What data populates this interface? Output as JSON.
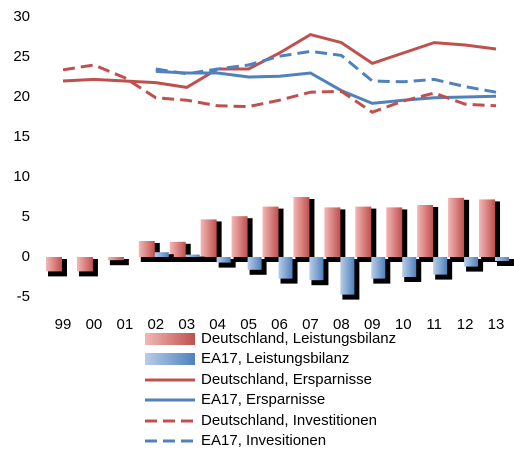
{
  "chart_data": {
    "type": "bar",
    "categories": [
      "99",
      "00",
      "01",
      "02",
      "03",
      "04",
      "05",
      "06",
      "07",
      "08",
      "09",
      "10",
      "11",
      "12",
      "13"
    ],
    "ylim": [
      -5,
      30
    ],
    "yticks": [
      30,
      25,
      20,
      15,
      10,
      5,
      0,
      -5
    ],
    "series": [
      {
        "name": "Deutschland, Leistungsbilanz",
        "type": "bar",
        "color": "#c0504d",
        "values": [
          -1.8,
          -1.8,
          -0.4,
          2.0,
          1.9,
          4.7,
          5.1,
          6.3,
          7.5,
          6.2,
          6.3,
          6.2,
          6.5,
          7.4,
          7.2
        ]
      },
      {
        "name": "EA17, Leistungsbilanz",
        "type": "bar",
        "color": "#4f81bd",
        "values": [
          null,
          null,
          null,
          0.6,
          0.3,
          -0.7,
          -1.6,
          -2.7,
          -2.9,
          -4.7,
          -2.7,
          -2.5,
          -2.2,
          -1.2,
          -0.5
        ]
      },
      {
        "name": "Deutschland, Ersparnisse",
        "type": "line",
        "dashed": false,
        "color": "#c0504d",
        "values": [
          22.0,
          22.2,
          22.0,
          21.8,
          21.2,
          23.5,
          23.5,
          25.5,
          27.8,
          26.8,
          24.2,
          25.5,
          26.8,
          26.5,
          26.0
        ]
      },
      {
        "name": "EA17, Ersparnisse",
        "type": "line",
        "dashed": false,
        "color": "#4f81bd",
        "values": [
          null,
          null,
          null,
          23.2,
          23.0,
          23.0,
          22.5,
          22.6,
          23.0,
          20.8,
          19.2,
          19.6,
          19.9,
          20.0,
          20.1
        ]
      },
      {
        "name": "Deutschland, Investitionen",
        "type": "line",
        "dashed": true,
        "color": "#c0504d",
        "values": [
          23.4,
          24.0,
          22.4,
          19.9,
          19.6,
          18.9,
          18.8,
          19.6,
          20.6,
          20.7,
          18.1,
          19.5,
          20.5,
          19.1,
          18.9
        ]
      },
      {
        "name": "EA17, Invesitionen",
        "type": "line",
        "dashed": true,
        "color": "#4f81bd",
        "values": [
          null,
          null,
          null,
          23.5,
          22.9,
          23.5,
          24.0,
          25.1,
          25.7,
          25.2,
          22.0,
          21.9,
          22.2,
          21.3,
          20.6
        ]
      }
    ]
  }
}
